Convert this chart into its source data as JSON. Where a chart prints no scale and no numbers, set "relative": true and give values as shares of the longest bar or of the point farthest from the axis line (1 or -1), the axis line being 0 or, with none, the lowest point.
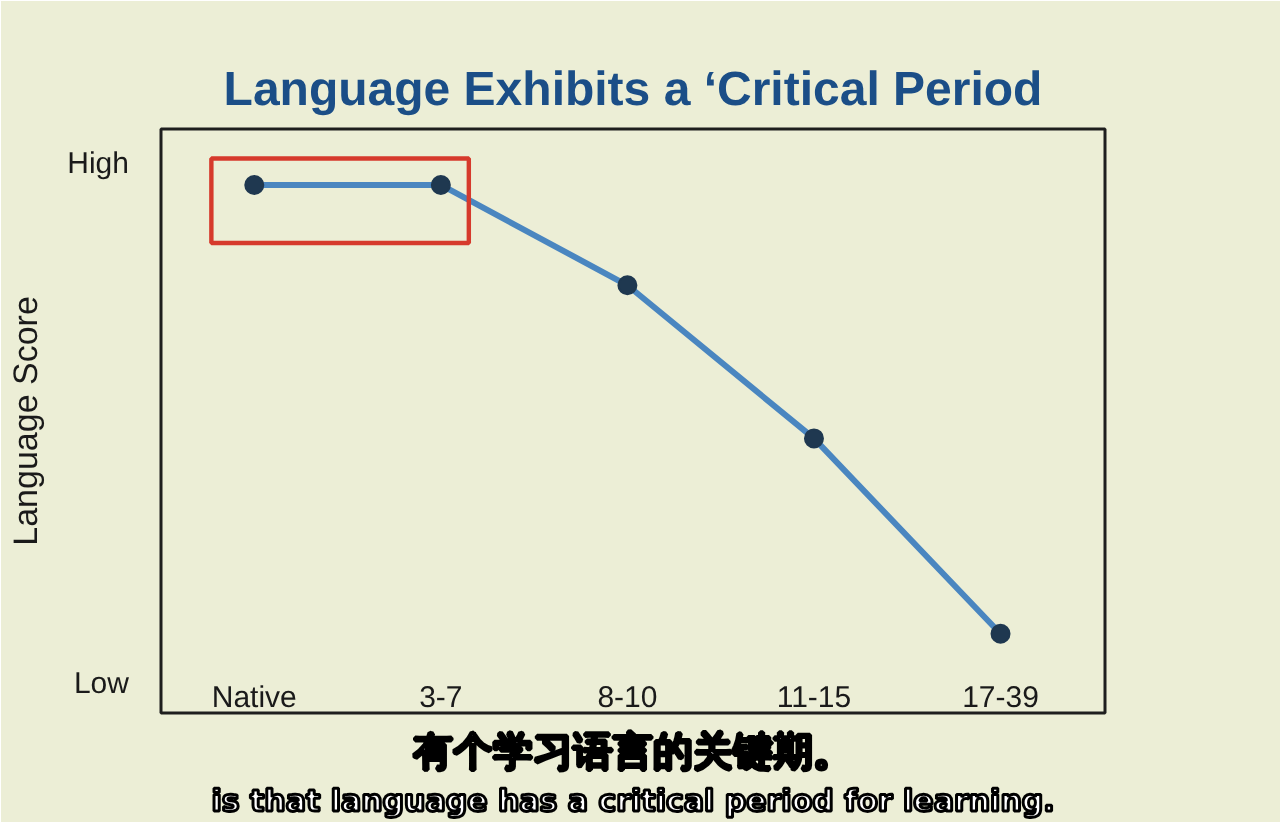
{
  "chart_data": {
    "type": "line",
    "title": "Language Exhibits a ‘Critical Period",
    "ylabel": "Language Score",
    "categories": [
      "Native",
      "3-7",
      "8-10",
      "11-15",
      "17-39"
    ],
    "relative": true,
    "series": [
      {
        "color": "#4a86c0",
        "values": [
          1,
          1,
          0.81,
          0.52,
          0.15
        ]
      }
    ],
    "marker": "circle",
    "line_style": "solid",
    "annotations": [
      "High",
      "Low",
      "有个学习语言的关键期。",
      "is that language has a critical period for learning."
    ]
  }
}
